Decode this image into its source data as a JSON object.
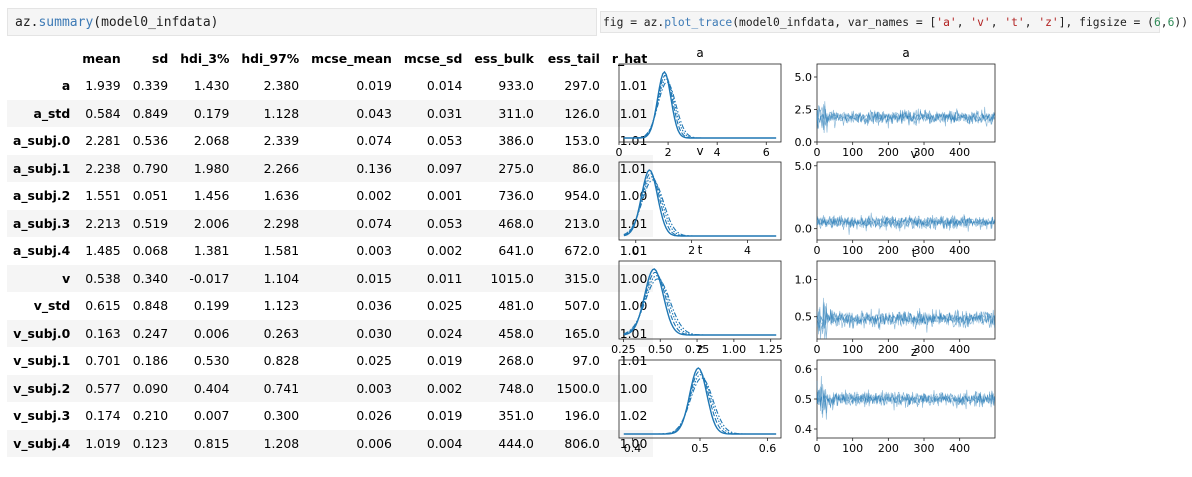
{
  "code_left": {
    "prefix": "az.",
    "fn": "summary",
    "args": "(model0_infdata)"
  },
  "code_right": {
    "p1": "fig = az.",
    "fn": "plot_trace",
    "p2": "(model0_infdata, var_names = [",
    "s1": "'a'",
    "c1": ", ",
    "s2": "'v'",
    "c2": ", ",
    "s3": "'t'",
    "c3": ", ",
    "s4": "'z'",
    "p3": "], figsize = (",
    "n1": "6",
    "c4": ",",
    "n2": "6",
    "p4": "))"
  },
  "summary_table": {
    "columns": [
      "",
      "mean",
      "sd",
      "hdi_3%",
      "hdi_97%",
      "mcse_mean",
      "mcse_sd",
      "ess_bulk",
      "ess_tail",
      "r_hat"
    ],
    "rows": [
      [
        "a",
        "1.939",
        "0.339",
        "1.430",
        "2.380",
        "0.019",
        "0.014",
        "933.0",
        "297.0",
        "1.01"
      ],
      [
        "a_std",
        "0.584",
        "0.849",
        "0.179",
        "1.128",
        "0.043",
        "0.031",
        "311.0",
        "126.0",
        "1.01"
      ],
      [
        "a_subj.0",
        "2.281",
        "0.536",
        "2.068",
        "2.339",
        "0.074",
        "0.053",
        "386.0",
        "153.0",
        "1.01"
      ],
      [
        "a_subj.1",
        "2.238",
        "0.790",
        "1.980",
        "2.266",
        "0.136",
        "0.097",
        "275.0",
        "86.0",
        "1.01"
      ],
      [
        "a_subj.2",
        "1.551",
        "0.051",
        "1.456",
        "1.636",
        "0.002",
        "0.001",
        "736.0",
        "954.0",
        "1.00"
      ],
      [
        "a_subj.3",
        "2.213",
        "0.519",
        "2.006",
        "2.298",
        "0.074",
        "0.053",
        "468.0",
        "213.0",
        "1.01"
      ],
      [
        "a_subj.4",
        "1.485",
        "0.068",
        "1.381",
        "1.581",
        "0.003",
        "0.002",
        "641.0",
        "672.0",
        "1.01"
      ],
      [
        "v",
        "0.538",
        "0.340",
        "-0.017",
        "1.104",
        "0.015",
        "0.011",
        "1015.0",
        "315.0",
        "1.00"
      ],
      [
        "v_std",
        "0.615",
        "0.848",
        "0.199",
        "1.123",
        "0.036",
        "0.025",
        "481.0",
        "507.0",
        "1.00"
      ],
      [
        "v_subj.0",
        "0.163",
        "0.247",
        "0.006",
        "0.263",
        "0.030",
        "0.024",
        "458.0",
        "165.0",
        "1.01"
      ],
      [
        "v_subj.1",
        "0.701",
        "0.186",
        "0.530",
        "0.828",
        "0.025",
        "0.019",
        "268.0",
        "97.0",
        "1.01"
      ],
      [
        "v_subj.2",
        "0.577",
        "0.090",
        "0.404",
        "0.741",
        "0.003",
        "0.002",
        "748.0",
        "1500.0",
        "1.00"
      ],
      [
        "v_subj.3",
        "0.174",
        "0.210",
        "0.007",
        "0.300",
        "0.026",
        "0.019",
        "351.0",
        "196.0",
        "1.02"
      ],
      [
        "v_subj.4",
        "1.019",
        "0.123",
        "0.815",
        "1.208",
        "0.006",
        "0.004",
        "444.0",
        "806.0",
        "1.00"
      ]
    ]
  },
  "trace_plot": {
    "line_color": "#1f77b4",
    "rows": [
      {
        "name": "a",
        "dens": {
          "xlim": [
            0,
            6.6
          ],
          "ticks": [
            0,
            2,
            4,
            6
          ],
          "tick_labels": [
            "0",
            "2",
            "4",
            "6"
          ],
          "mu": 1.9,
          "sigma": 0.3
        },
        "trace": {
          "ylim": [
            0,
            6
          ],
          "yticks": [
            0,
            2.5,
            5
          ],
          "ytick_labels": [
            "0.0",
            "2.5",
            "5.0"
          ],
          "center": 1.9,
          "spread": 0.35
        }
      },
      {
        "name": "v",
        "dens": {
          "xlim": [
            -0.6,
            5.2
          ],
          "ticks": [
            0,
            2,
            4
          ],
          "tick_labels": [
            "0",
            "2",
            "4"
          ],
          "mu": 0.55,
          "sigma": 0.32
        },
        "trace": {
          "ylim": [
            -0.9,
            5.3
          ],
          "yticks": [
            0,
            5
          ],
          "ytick_labels": [
            "0.0",
            "5.0"
          ],
          "center": 0.5,
          "spread": 0.35
        }
      },
      {
        "name": "t",
        "dens": {
          "xlim": [
            0.22,
            1.32
          ],
          "ticks": [
            0.25,
            0.5,
            0.75,
            1.0,
            1.25
          ],
          "tick_labels": [
            "0.25",
            "0.50",
            "0.75",
            "1.00",
            "1.25"
          ],
          "mu": 0.47,
          "sigma": 0.07
        },
        "trace": {
          "ylim": [
            0.2,
            1.25
          ],
          "yticks": [
            0.5,
            1.0
          ],
          "ytick_labels": [
            "0.5",
            "1.0"
          ],
          "center": 0.47,
          "spread": 0.07
        }
      },
      {
        "name": "z",
        "dens": {
          "xlim": [
            0.38,
            0.62
          ],
          "ticks": [
            0.4,
            0.5,
            0.6
          ],
          "tick_labels": [
            "0.4",
            "0.5",
            "0.6"
          ],
          "mu": 0.5,
          "sigma": 0.014
        },
        "trace": {
          "ylim": [
            0.37,
            0.63
          ],
          "yticks": [
            0.4,
            0.5,
            0.6
          ],
          "ytick_labels": [
            "0.4",
            "0.5",
            "0.6"
          ],
          "center": 0.5,
          "spread": 0.016
        }
      }
    ],
    "trace_xlim": [
      0,
      499
    ],
    "trace_xticks": [
      0,
      100,
      200,
      300,
      400
    ],
    "trace_xtick_labels": [
      "0",
      "100",
      "200",
      "300",
      "400"
    ]
  }
}
